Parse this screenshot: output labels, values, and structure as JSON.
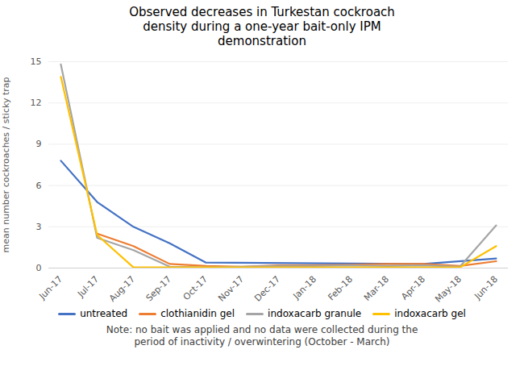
{
  "chart_data": {
    "type": "line",
    "title": "Observed decreases in Turkestan cockroach\ndensity during a one-year bait-only IPM\ndemonstration",
    "ylabel": "mean number cockroaches / sticky trap",
    "annotations": [
      "Note: no bait was applied and no data were collected during the\nperiod of inactivity / overwintering (October - March)"
    ],
    "categories": [
      "Jun-17",
      "Jul-17",
      "Aug-17",
      "Sep-17",
      "Oct-17",
      "Nov-17",
      "Dec-17",
      "Jan-18",
      "Feb-18",
      "Mar-18",
      "Apr-18",
      "May-18",
      "Jun-18"
    ],
    "series": [
      {
        "name": "untreated",
        "color": "#4472C4",
        "x": [
          "Jun-17",
          "Jul-17",
          "Aug-17",
          "Sep-17",
          "Oct-17",
          "Apr-18",
          "Jun-18"
        ],
        "values": [
          7.8,
          4.8,
          3.0,
          1.8,
          0.4,
          0.3,
          0.7
        ]
      },
      {
        "name": "clothianidin gel",
        "color": "#ED7D31",
        "x": [
          "Jul-17",
          "Aug-17",
          "Sep-17",
          "Oct-17",
          "Nov-17",
          "Dec-17",
          "Jan-18",
          "Feb-18",
          "Mar-18",
          "Apr-18",
          "May-18",
          "Jun-18"
        ],
        "values": [
          2.5,
          1.6,
          0.3,
          0.15,
          0.1,
          0.2,
          0.2,
          0.25,
          0.3,
          0.3,
          0.15,
          0.5
        ]
      },
      {
        "name": "indoxacarb granule",
        "color": "#A5A5A5",
        "x": [
          "Jun-17",
          "Jul-17",
          "Aug-17",
          "Sep-17",
          "Oct-17",
          "Nov-17",
          "Dec-17",
          "Jan-18",
          "Feb-18",
          "Mar-18",
          "Apr-18",
          "May-18",
          "Jun-18"
        ],
        "values": [
          14.8,
          2.2,
          1.3,
          0.1,
          0.05,
          0.1,
          0.15,
          0.15,
          0.2,
          0.15,
          0.2,
          0.1,
          3.1
        ]
      },
      {
        "name": "indoxacarb gel",
        "color": "#FFC000",
        "x": [
          "Jun-17",
          "Jul-17",
          "Aug-17",
          "Sep-17",
          "Oct-17",
          "Nov-17",
          "Dec-17",
          "Jan-18",
          "Feb-18",
          "Mar-18",
          "Apr-18",
          "May-18",
          "Jun-18"
        ],
        "values": [
          13.9,
          2.4,
          0.05,
          0.05,
          0.05,
          0.05,
          0.05,
          0.05,
          0.05,
          0.05,
          0.05,
          0.05,
          1.6
        ]
      }
    ],
    "ylim": [
      0,
      15
    ],
    "yticks": [
      0,
      3,
      6,
      9,
      12,
      15
    ],
    "grid": true,
    "legend": "bottom"
  }
}
